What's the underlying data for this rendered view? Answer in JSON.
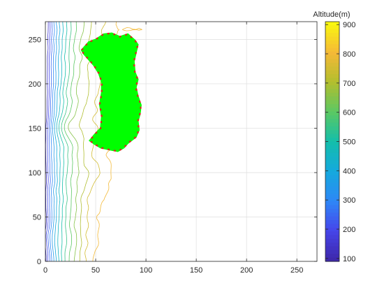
{
  "chart_data": {
    "type": "contour",
    "xlabel": "",
    "ylabel": "",
    "xlim": [
      0,
      270
    ],
    "ylim": [
      0,
      270
    ],
    "xticks": [
      0,
      50,
      100,
      150,
      200,
      250
    ],
    "yticks": [
      0,
      50,
      100,
      150,
      200,
      250
    ],
    "grid": true,
    "colormap": "parula",
    "colorbar": {
      "title": "Altitude(m)",
      "min": 90,
      "max": 910,
      "ticks": [
        100,
        200,
        300,
        400,
        500,
        600,
        700,
        800,
        900
      ]
    },
    "contour_levels": [
      150,
      200,
      250,
      300,
      350,
      400,
      450,
      500,
      550,
      600,
      650,
      700,
      750,
      800
    ],
    "region": {
      "fill_color": "#00ff00",
      "boundary_color": "#e02020",
      "outline": [
        [
          36,
          238
        ],
        [
          43,
          247
        ],
        [
          50,
          250
        ],
        [
          58,
          256
        ],
        [
          66,
          257
        ],
        [
          74,
          253
        ],
        [
          82,
          256
        ],
        [
          89,
          249
        ],
        [
          92,
          244
        ],
        [
          90,
          235
        ],
        [
          88,
          225
        ],
        [
          89,
          213
        ],
        [
          92,
          205
        ],
        [
          90,
          196
        ],
        [
          92,
          186
        ],
        [
          95,
          176
        ],
        [
          94,
          166
        ],
        [
          92,
          158
        ],
        [
          93,
          148
        ],
        [
          90,
          140
        ],
        [
          82,
          133
        ],
        [
          78,
          128
        ],
        [
          72,
          124
        ],
        [
          63,
          126
        ],
        [
          55,
          128
        ],
        [
          49,
          132
        ],
        [
          44,
          136
        ],
        [
          49,
          143
        ],
        [
          55,
          150
        ],
        [
          56,
          163
        ],
        [
          54,
          177
        ],
        [
          56,
          190
        ],
        [
          56,
          202
        ],
        [
          53,
          212
        ],
        [
          48,
          221
        ],
        [
          41,
          230
        ],
        [
          38,
          234
        ]
      ]
    }
  }
}
